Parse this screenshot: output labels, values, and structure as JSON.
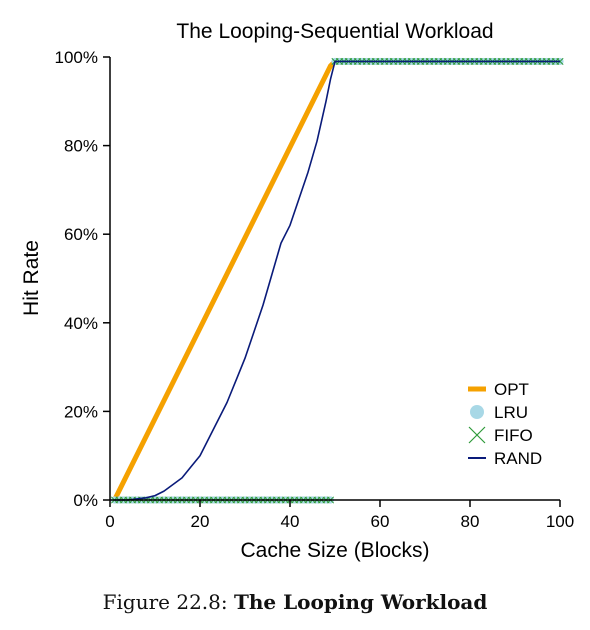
{
  "chart_data": {
    "type": "line",
    "title": "The Looping-Sequential Workload",
    "xlabel": "Cache Size (Blocks)",
    "ylabel": "Hit Rate",
    "xlim": [
      0,
      100
    ],
    "ylim": [
      0,
      100
    ],
    "xticks": [
      "0",
      "20",
      "40",
      "60",
      "80",
      "100"
    ],
    "xtick_values": [
      0,
      20,
      40,
      60,
      80,
      100
    ],
    "yticks": [
      "0%",
      "20%",
      "40%",
      "60%",
      "80%",
      "100%"
    ],
    "ytick_values": [
      0,
      20,
      40,
      60,
      80,
      100
    ],
    "legend_position": "bottom-right",
    "series": [
      {
        "name": "OPT",
        "style": "thick-line",
        "color": "#f5a100",
        "x": [
          1,
          49,
          50,
          100
        ],
        "y": [
          0,
          98,
          99,
          99
        ]
      },
      {
        "name": "LRU",
        "style": "circle-markers",
        "color": "#a8d8e6",
        "x": [
          1,
          2,
          3,
          4,
          5,
          6,
          7,
          8,
          9,
          10,
          11,
          12,
          13,
          14,
          15,
          16,
          17,
          18,
          19,
          20,
          21,
          22,
          23,
          24,
          25,
          26,
          27,
          28,
          29,
          30,
          31,
          32,
          33,
          34,
          35,
          36,
          37,
          38,
          39,
          40,
          41,
          42,
          43,
          44,
          45,
          46,
          47,
          48,
          49,
          50,
          51,
          52,
          53,
          54,
          55,
          56,
          57,
          58,
          59,
          60,
          61,
          62,
          63,
          64,
          65,
          66,
          67,
          68,
          69,
          70,
          71,
          72,
          73,
          74,
          75,
          76,
          77,
          78,
          79,
          80,
          81,
          82,
          83,
          84,
          85,
          86,
          87,
          88,
          89,
          90,
          91,
          92,
          93,
          94,
          95,
          96,
          97,
          98,
          99,
          100
        ],
        "y": [
          0,
          0,
          0,
          0,
          0,
          0,
          0,
          0,
          0,
          0,
          0,
          0,
          0,
          0,
          0,
          0,
          0,
          0,
          0,
          0,
          0,
          0,
          0,
          0,
          0,
          0,
          0,
          0,
          0,
          0,
          0,
          0,
          0,
          0,
          0,
          0,
          0,
          0,
          0,
          0,
          0,
          0,
          0,
          0,
          0,
          0,
          0,
          0,
          0,
          99,
          99,
          99,
          99,
          99,
          99,
          99,
          99,
          99,
          99,
          99,
          99,
          99,
          99,
          99,
          99,
          99,
          99,
          99,
          99,
          99,
          99,
          99,
          99,
          99,
          99,
          99,
          99,
          99,
          99,
          99,
          99,
          99,
          99,
          99,
          99,
          99,
          99,
          99,
          99,
          99,
          99,
          99,
          99,
          99,
          99,
          99,
          99,
          99,
          99,
          99
        ]
      },
      {
        "name": "FIFO",
        "style": "x-markers",
        "color": "#2e9a3a",
        "x": [
          1,
          2,
          3,
          4,
          5,
          6,
          7,
          8,
          9,
          10,
          11,
          12,
          13,
          14,
          15,
          16,
          17,
          18,
          19,
          20,
          21,
          22,
          23,
          24,
          25,
          26,
          27,
          28,
          29,
          30,
          31,
          32,
          33,
          34,
          35,
          36,
          37,
          38,
          39,
          40,
          41,
          42,
          43,
          44,
          45,
          46,
          47,
          48,
          49,
          50,
          51,
          52,
          53,
          54,
          55,
          56,
          57,
          58,
          59,
          60,
          61,
          62,
          63,
          64,
          65,
          66,
          67,
          68,
          69,
          70,
          71,
          72,
          73,
          74,
          75,
          76,
          77,
          78,
          79,
          80,
          81,
          82,
          83,
          84,
          85,
          86,
          87,
          88,
          89,
          90,
          91,
          92,
          93,
          94,
          95,
          96,
          97,
          98,
          99,
          100
        ],
        "y": [
          0,
          0,
          0,
          0,
          0,
          0,
          0,
          0,
          0,
          0,
          0,
          0,
          0,
          0,
          0,
          0,
          0,
          0,
          0,
          0,
          0,
          0,
          0,
          0,
          0,
          0,
          0,
          0,
          0,
          0,
          0,
          0,
          0,
          0,
          0,
          0,
          0,
          0,
          0,
          0,
          0,
          0,
          0,
          0,
          0,
          0,
          0,
          0,
          0,
          99,
          99,
          99,
          99,
          99,
          99,
          99,
          99,
          99,
          99,
          99,
          99,
          99,
          99,
          99,
          99,
          99,
          99,
          99,
          99,
          99,
          99,
          99,
          99,
          99,
          99,
          99,
          99,
          99,
          99,
          99,
          99,
          99,
          99,
          99,
          99,
          99,
          99,
          99,
          99,
          99,
          99,
          99,
          99,
          99,
          99,
          99,
          99,
          99,
          99,
          99
        ]
      },
      {
        "name": "RAND",
        "style": "thin-line",
        "color": "#0a1b7a",
        "x": [
          1,
          4,
          8,
          10,
          12,
          14,
          16,
          18,
          20,
          22,
          24,
          26,
          28,
          30,
          32,
          34,
          36,
          38,
          40,
          42,
          44,
          46,
          48,
          49,
          50,
          100
        ],
        "y": [
          0,
          0,
          0.5,
          1,
          2,
          3.5,
          5,
          7.5,
          10,
          14,
          18,
          22,
          27,
          32,
          38,
          44,
          51,
          58,
          62,
          68,
          74,
          81,
          90,
          95,
          99,
          99
        ]
      }
    ]
  },
  "caption": {
    "prefix": "Figure 22.8: ",
    "title": "The Looping Workload"
  }
}
